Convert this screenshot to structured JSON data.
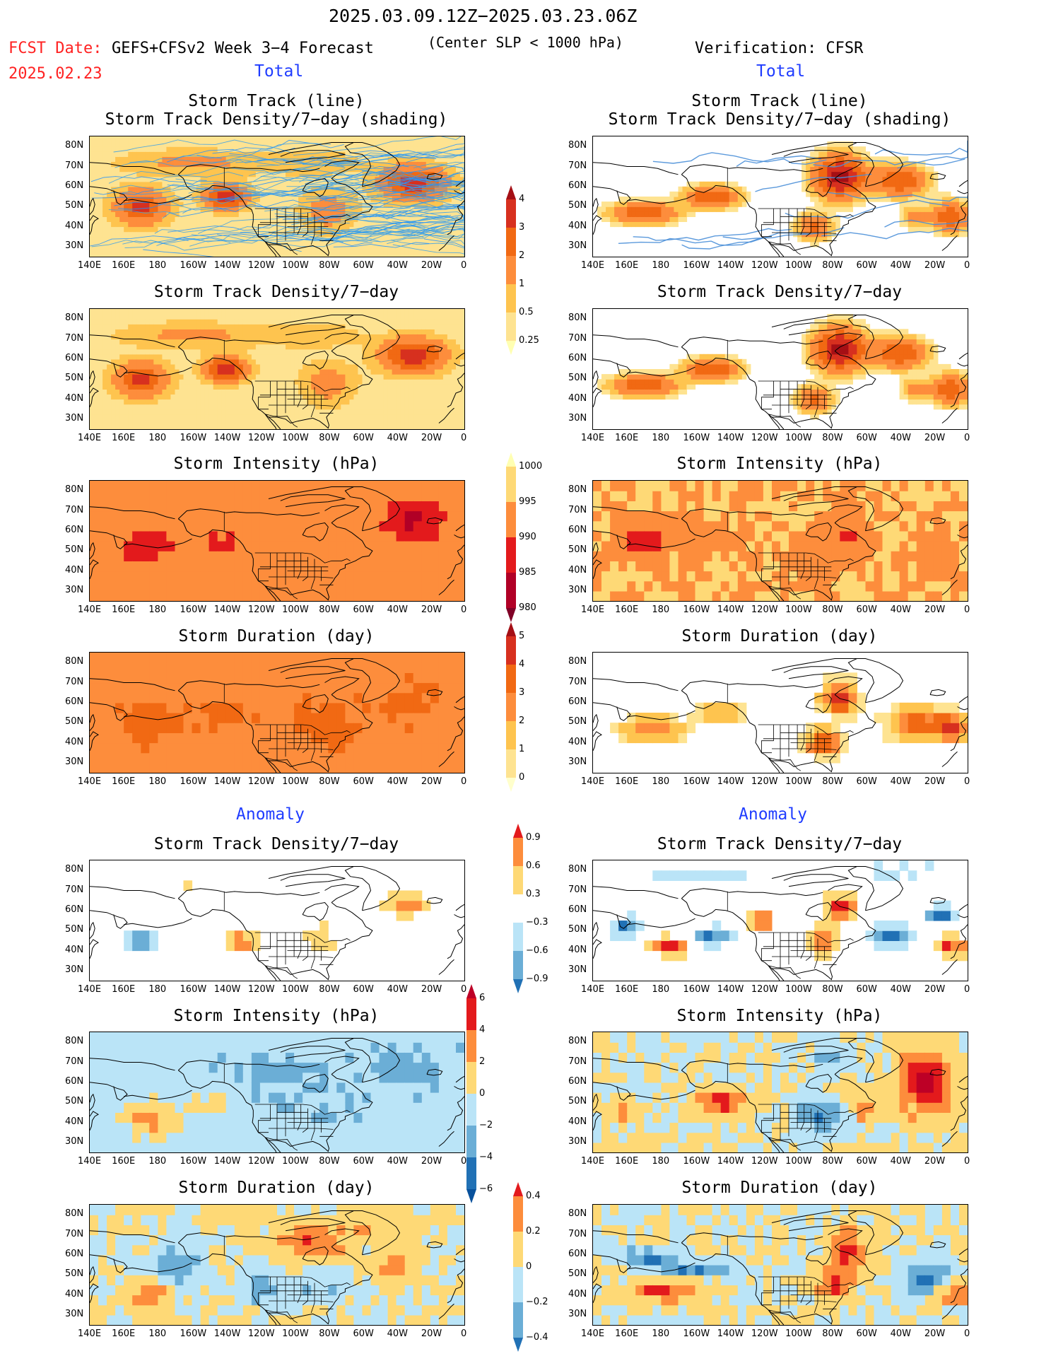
{
  "header": {
    "date_range": "2025.03.09.12Z−2025.03.23.06Z",
    "fcst_label": "FCST Date:",
    "fcst_date": "2025.02.23",
    "forecast_name": "GEFS+CFSv2 Week 3−4 Forecast",
    "center_slp": "(Center SLP < 1000 hPa)",
    "verification": "Verification: CFSR"
  },
  "sections": {
    "total_left": "Total",
    "total_right": "Total",
    "anomaly_left": "Anomaly",
    "anomaly_right": "Anomaly"
  },
  "panel_titles": {
    "track_line": "Storm Track (line)",
    "track_shading": "Storm Track Density/7−day (shading)",
    "density": "Storm Track Density/7−day",
    "intensity": "Storm Intensity (hPa)",
    "duration": "Storm Duration (day)"
  },
  "lat_labels": [
    "80N",
    "70N",
    "60N",
    "50N",
    "40N",
    "30N"
  ],
  "lon_labels": [
    "140E",
    "160E",
    "180",
    "160W",
    "140W",
    "120W",
    "100W",
    "80W",
    "60W",
    "40W",
    "20W",
    "0"
  ],
  "colorbars": {
    "density_total": {
      "labels": [
        "4",
        "3",
        "2",
        "1",
        "0.5",
        "0.25"
      ],
      "colors": [
        "#a50f15",
        "#d7301f",
        "#f16913",
        "#fd8d3c",
        "#fec44f",
        "#fee391",
        "#ffffb2"
      ]
    },
    "intensity_total": {
      "labels": [
        "1000",
        "995",
        "990",
        "985",
        "980"
      ],
      "colors": [
        "#ffffb2",
        "#fed976",
        "#fd8d3c",
        "#e31a1c",
        "#b10026",
        "#800026"
      ]
    },
    "duration_total": {
      "labels": [
        "5",
        "4",
        "3",
        "2",
        "1",
        "0"
      ],
      "colors": [
        "#a50f15",
        "#d7301f",
        "#f16913",
        "#fd8d3c",
        "#fec44f",
        "#fee391",
        "#ffffcc"
      ]
    },
    "density_anom": {
      "labels": [
        "0.9",
        "0.6",
        "0.3",
        "−0.3",
        "−0.6",
        "−0.9"
      ],
      "colors": [
        "#e31a1c",
        "#fd8d3c",
        "#fed976",
        "#ffffff",
        "#bae4f7",
        "#6baed6",
        "#2171b5"
      ]
    },
    "intensity_anom": {
      "labels": [
        "6",
        "4",
        "2",
        "0",
        "−2",
        "−4",
        "−6"
      ],
      "colors": [
        "#bd0026",
        "#e31a1c",
        "#fd8d3c",
        "#fed976",
        "#bae4f7",
        "#6baed6",
        "#2171b5",
        "#08519c"
      ]
    },
    "duration_anom": {
      "labels": [
        "0.4",
        "0.2",
        "0",
        "−0.2",
        "−0.4"
      ],
      "colors": [
        "#e31a1c",
        "#fd8d3c",
        "#fed976",
        "#bae4f7",
        "#6baed6",
        "#2171b5"
      ]
    }
  }
}
